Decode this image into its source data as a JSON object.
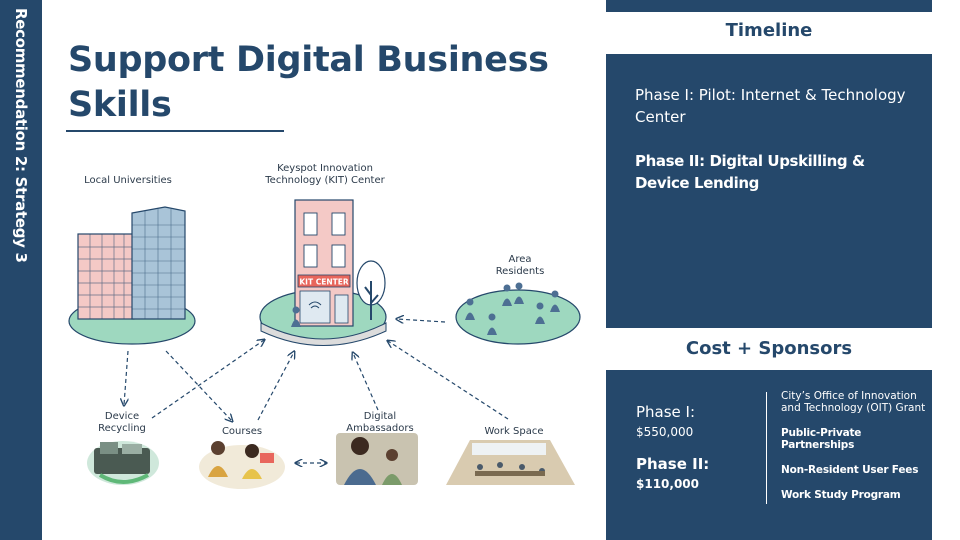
{
  "sidebar": {
    "text": "Recommendation 2: Strategy 3"
  },
  "title": "Support Digital Business Skills",
  "timeline": {
    "heading": "Timeline",
    "phase1": "Phase I: Pilot: Internet & Technology Center",
    "phase2": "Phase II: Digital Upskilling & Device Lending"
  },
  "cost": {
    "heading": "Cost + Sponsors",
    "phase1_label": "Phase I:",
    "phase1_amount": "$550,000",
    "phase2_label": "Phase II:",
    "phase2_amount": "$110,000",
    "sponsors": [
      "City’s Office of Innovation and Technology (OIT) Grant",
      "Public-Private Partnerships",
      "Non-Resident User Fees",
      "Work Study Program"
    ]
  },
  "diagram": {
    "universities": "Local Universities",
    "kit_center": "Keyspot Innovation Technology (KIT) Center",
    "kit_sign": "KIT CENTER",
    "residents": "Area Residents",
    "device_recycling": "Device Recycling",
    "courses": "Courses",
    "ambassadors": "Digital Ambassadors",
    "workspace": "Work Space"
  },
  "colors": {
    "navy": "#25486b",
    "lawn": "#9ed8bf",
    "building": "#f4c9c6",
    "glass": "#a9c4d8"
  }
}
